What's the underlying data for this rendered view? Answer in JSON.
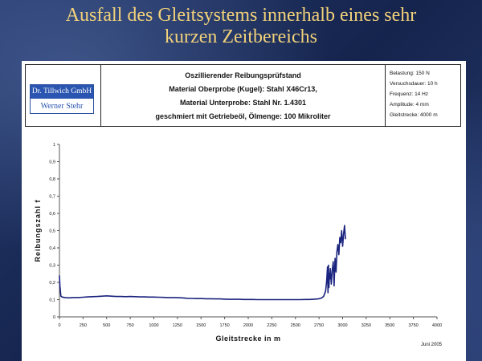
{
  "slide": {
    "title_line1": "Ausfall des Gleitsystems innerhalb eines sehr",
    "title_line2": "kurzen Zeitbereichs"
  },
  "header": {
    "logo_line1": "Dr. Tillwich GmbH",
    "logo_line2": "Werner Stehr",
    "description": [
      "Oszillierender Reibungsprüfstand",
      "Material Oberprobe (Kugel): Stahl X46Cr13,",
      "Material Unterprobe: Stahl Nr. 1.4301",
      "geschmiert mit Getriebeöl, Ölmenge: 100 Mikroliter"
    ],
    "params": [
      "Belastung: 150 N",
      "Versuchsdauer: 10 h",
      "Frequenz: 14 Hz",
      "Amplitude: 4 mm",
      "Gleitstrecke: 4000 m"
    ]
  },
  "footer_note": "Juni 2005",
  "chart_data": {
    "type": "line",
    "title": "",
    "xlabel": "Gleitstrecke in m",
    "ylabel": "Reibungszahl f",
    "xlim": [
      0,
      4000
    ],
    "ylim": [
      0,
      1
    ],
    "x_ticks": [
      "0",
      "250",
      "500",
      "750",
      "1000",
      "1250",
      "1500",
      "1750",
      "2000",
      "2250",
      "2500",
      "2750",
      "3000",
      "3250",
      "3500",
      "3750",
      "4000"
    ],
    "y_ticks": [
      "0",
      "0,1",
      "0,2",
      "0,3",
      "0,4",
      "0,5",
      "0,6",
      "0,7",
      "0,8",
      "0,9",
      "1"
    ],
    "grid": false,
    "legend": "none",
    "line_color": "#1a237e",
    "series": [
      {
        "x": [
          0,
          5,
          15,
          30,
          60,
          100,
          150,
          200,
          250,
          300,
          350,
          400,
          450,
          500,
          550,
          600,
          650,
          700,
          750,
          800,
          850,
          900,
          950,
          1000,
          1050,
          1100,
          1150,
          1200,
          1250,
          1300,
          1350,
          1400,
          1450,
          1500,
          1550,
          1600,
          1650,
          1700,
          1750,
          1800,
          1850,
          1900,
          1950,
          2000,
          2050,
          2100,
          2150,
          2200,
          2250,
          2300,
          2350,
          2400,
          2450,
          2500,
          2550,
          2600,
          2650,
          2700,
          2750,
          2780,
          2800,
          2820,
          2830,
          2840,
          2845,
          2850,
          2855,
          2860,
          2865,
          2870,
          2880,
          2890,
          2900,
          2910,
          2920,
          2930,
          2940,
          2950,
          2960,
          2970,
          2980,
          2990,
          3000,
          3010,
          3020,
          3030
        ],
        "y": [
          0.24,
          0.18,
          0.12,
          0.115,
          0.112,
          0.11,
          0.112,
          0.112,
          0.114,
          0.116,
          0.117,
          0.118,
          0.12,
          0.122,
          0.12,
          0.118,
          0.118,
          0.117,
          0.118,
          0.117,
          0.116,
          0.116,
          0.115,
          0.115,
          0.114,
          0.113,
          0.112,
          0.112,
          0.111,
          0.11,
          0.108,
          0.107,
          0.106,
          0.106,
          0.105,
          0.105,
          0.104,
          0.104,
          0.103,
          0.102,
          0.102,
          0.102,
          0.101,
          0.101,
          0.101,
          0.1,
          0.1,
          0.1,
          0.1,
          0.1,
          0.1,
          0.1,
          0.1,
          0.1,
          0.1,
          0.101,
          0.101,
          0.103,
          0.105,
          0.11,
          0.12,
          0.15,
          0.2,
          0.29,
          0.14,
          0.3,
          0.17,
          0.25,
          0.22,
          0.28,
          0.19,
          0.27,
          0.32,
          0.18,
          0.34,
          0.26,
          0.38,
          0.42,
          0.36,
          0.46,
          0.43,
          0.5,
          0.41,
          0.48,
          0.53,
          0.45
        ]
      }
    ]
  }
}
